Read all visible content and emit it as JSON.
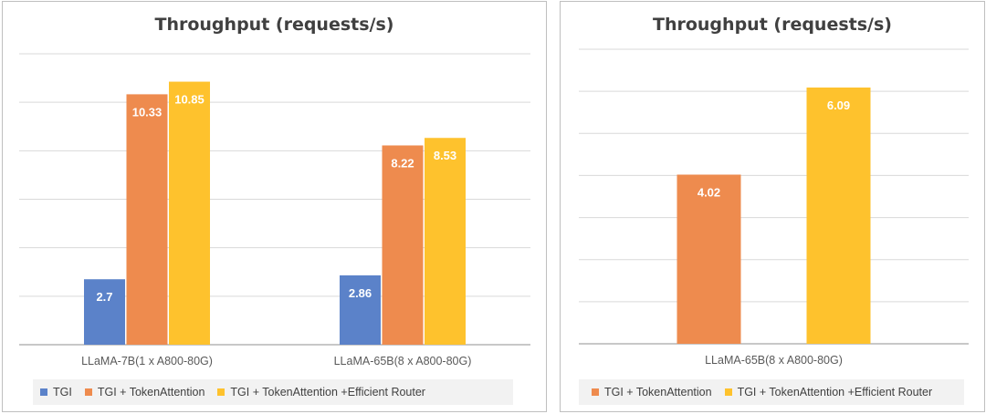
{
  "charts": [
    {
      "title": "Throughput (requests/s)",
      "legend": [
        {
          "label": "TGI",
          "color": "#5b82c9"
        },
        {
          "label": "TGI + TokenAttention",
          "color": "#ee8b4e"
        },
        {
          "label": "TGI + TokenAttention +Efficient  Router",
          "color": "#fec22d"
        }
      ]
    },
    {
      "title": "Throughput (requests/s)",
      "legend": [
        {
          "label": "TGI + TokenAttention",
          "color": "#ee8b4e"
        },
        {
          "label": "TGI + TokenAttention +Efficient  Router",
          "color": "#fec22d"
        }
      ]
    }
  ],
  "chart_data": [
    {
      "type": "bar",
      "title": "Throughput (requests/s)",
      "categories": [
        "LLaMA-7B(1 x A800-80G)",
        "LLaMA-65B(8 x A800-80G)"
      ],
      "series": [
        {
          "name": "TGI",
          "values": [
            2.7,
            2.86
          ],
          "color": "#5b82c9"
        },
        {
          "name": "TGI + TokenAttention",
          "values": [
            10.33,
            8.22
          ],
          "color": "#ee8b4e"
        },
        {
          "name": "TGI + TokenAttention +Efficient  Router",
          "values": [
            10.85,
            8.53
          ],
          "color": "#fec22d"
        }
      ],
      "ylim": [
        0,
        12
      ],
      "gridlines": [
        2,
        4,
        6,
        8,
        10,
        12
      ],
      "grid": true,
      "y_tick_labels_shown": false,
      "legend_position": "bottom"
    },
    {
      "type": "bar",
      "title": "Throughput (requests/s)",
      "categories": [
        "LLaMA-65B(8 x A800-80G)"
      ],
      "series": [
        {
          "name": "TGI + TokenAttention",
          "values": [
            4.02
          ],
          "color": "#ee8b4e"
        },
        {
          "name": "TGI + TokenAttention +Efficient  Router",
          "values": [
            6.09
          ],
          "color": "#fec22d"
        }
      ],
      "ylim": [
        0,
        7
      ],
      "gridlines": [
        1,
        2,
        3,
        4,
        5,
        6,
        7
      ],
      "grid": true,
      "y_tick_labels_shown": false,
      "legend_position": "bottom"
    }
  ]
}
